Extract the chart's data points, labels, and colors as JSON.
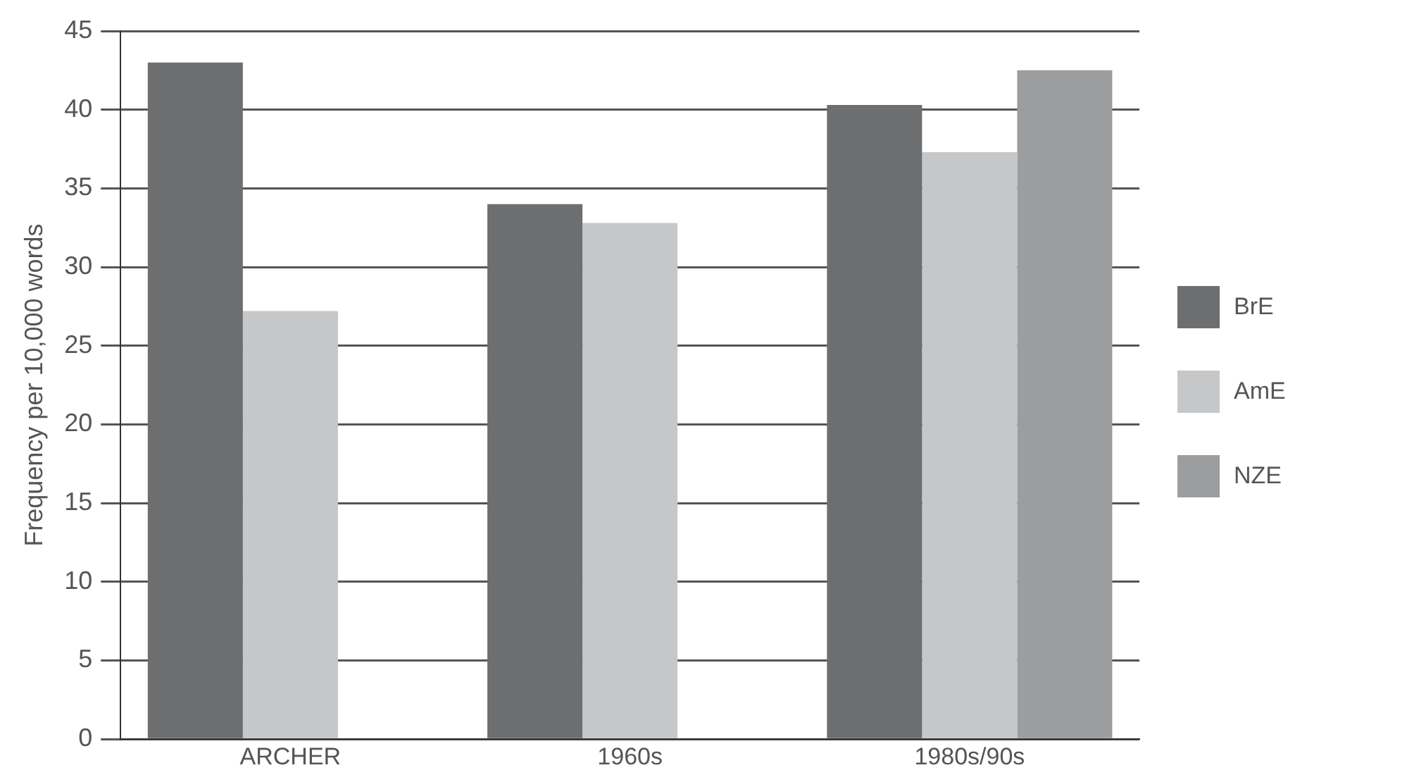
{
  "chart_data": {
    "type": "bar",
    "ylabel": "Frequency per 10,000 words",
    "categories": [
      "ARCHER",
      "1960s",
      "1980s/90s"
    ],
    "series": [
      {
        "name": "BrE",
        "color": "#6d6e70",
        "values": [
          43,
          34,
          40.3
        ]
      },
      {
        "name": "AmE",
        "color": "#c6c7c9",
        "values": [
          27.2,
          32.8,
          37.3
        ]
      },
      {
        "name": "NZE",
        "color": "#9c9d9f",
        "values": [
          null,
          null,
          42.5
        ]
      }
    ],
    "ylim": [
      0,
      45
    ],
    "yticks": [
      0,
      5,
      10,
      15,
      20,
      25,
      30,
      35,
      40,
      45
    ],
    "grid": "y",
    "legend": "right"
  }
}
